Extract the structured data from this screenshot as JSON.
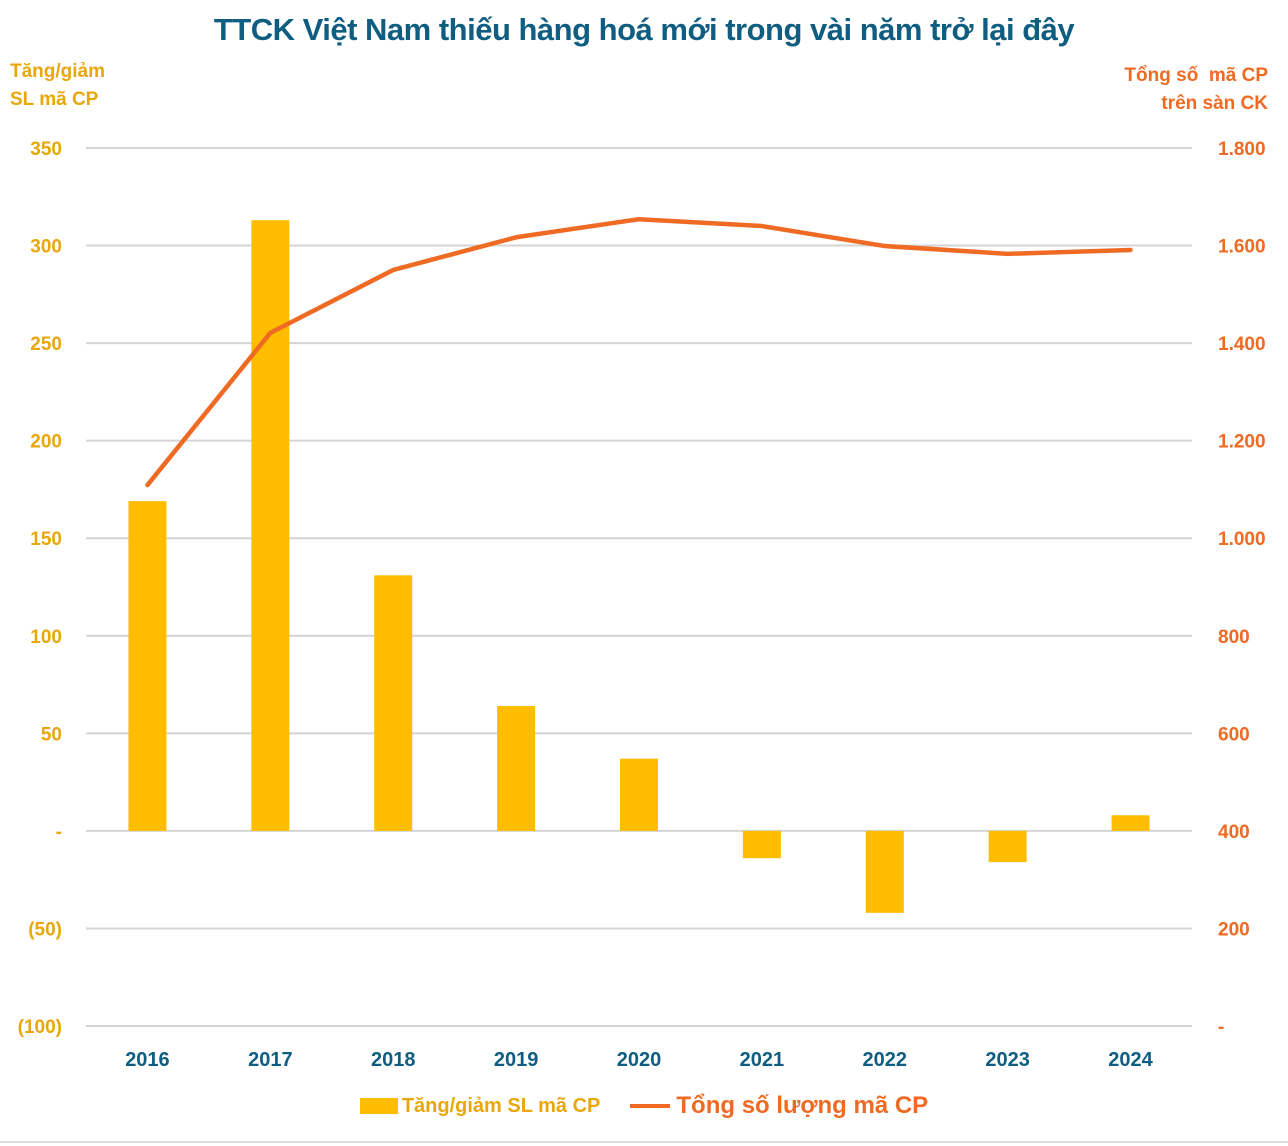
{
  "chart_data": {
    "type": "bar+line",
    "title": "TTCK Việt Nam thiếu hàng hoá mới trong vài năm trở lại đây",
    "categories": [
      "2016",
      "2017",
      "2018",
      "2019",
      "2020",
      "2021",
      "2022",
      "2023",
      "2024"
    ],
    "series": [
      {
        "name": "Tăng/giảm SL mã CP",
        "type": "bar",
        "axis": "left",
        "color": "#ffbd00",
        "values": [
          169,
          313,
          131,
          64,
          37,
          -14,
          -42,
          -16,
          8
        ]
      },
      {
        "name": "Tổng số lượng mã CP",
        "type": "line",
        "axis": "right",
        "color": "#ef6a23",
        "values": [
          1109,
          1421,
          1550,
          1617,
          1654,
          1640,
          1599,
          1583,
          1591
        ]
      }
    ],
    "left_axis": {
      "title_lines": [
        "Tăng/giảm",
        "SL mã CP"
      ],
      "range": [
        -100,
        350
      ],
      "ticks": [
        350,
        300,
        250,
        200,
        150,
        100,
        50,
        0,
        -50,
        -100
      ],
      "tick_labels": [
        "350",
        "300",
        "250",
        "200",
        "150",
        "100",
        "50",
        "-",
        "(50)",
        "(100)"
      ],
      "color": "#e8a70a"
    },
    "right_axis": {
      "title_lines": [
        "Tổng số  mã CP",
        "trên sàn CK"
      ],
      "range": [
        0,
        1800
      ],
      "ticks": [
        1800,
        1600,
        1400,
        1200,
        1000,
        800,
        600,
        400,
        200,
        0
      ],
      "tick_labels": [
        "1.800",
        "1.600",
        "1.400",
        "1.200",
        "1.000",
        "800",
        "600",
        "400",
        "200",
        "-"
      ],
      "color": "#ef6a23"
    },
    "grid": true,
    "legend_position": "bottom",
    "title_color": "#0f5d80"
  }
}
